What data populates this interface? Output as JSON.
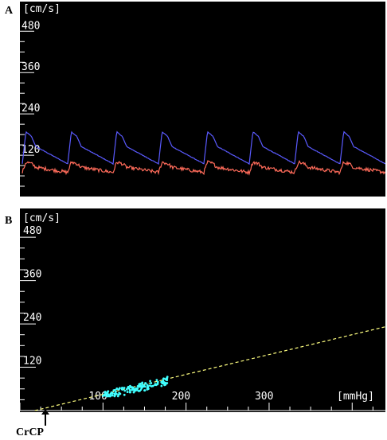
{
  "panels": [
    {
      "label": "A"
    },
    {
      "label": "B"
    }
  ],
  "chart_data": [
    {
      "type": "line",
      "ylabel": "[cm/s]",
      "yticks": [
        480,
        360,
        240,
        120
      ],
      "ylim": [
        0,
        520
      ],
      "beat_count": 8,
      "series": [
        {
          "color": "#5a5aff",
          "baseline": 95,
          "peak": 188,
          "dicrotic": 145
        },
        {
          "color": "#ff6b5a",
          "baseline": 70,
          "peak": 100,
          "dicrotic": 85
        }
      ]
    },
    {
      "type": "scatter",
      "ylabel": "[cm/s]",
      "xlabel": "[mmHg]",
      "yticks": [
        480,
        360,
        240,
        120
      ],
      "xticks": [
        100,
        200,
        300
      ],
      "xlim": [
        0,
        440
      ],
      "ylim": [
        0,
        520
      ],
      "point_color": "#40ffff",
      "points_x_range": [
        100,
        180
      ],
      "points_y_range": [
        40,
        95
      ],
      "regression": {
        "color": "#ffff80",
        "intercept_x": 18,
        "slope": 0.55
      },
      "annotation": "CrCP"
    }
  ]
}
